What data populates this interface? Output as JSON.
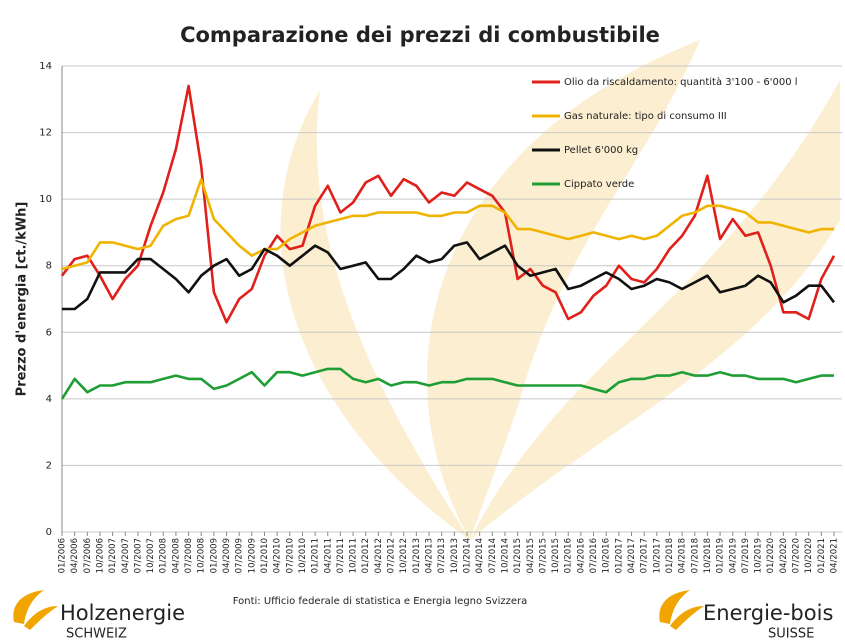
{
  "chart_data": {
    "type": "line",
    "title": "Comparazione dei prezzi di combustibile",
    "y_label": "Prezzo d'energia  [ct./kWh]",
    "categories": [
      "01/2006",
      "04/2006",
      "07/2006",
      "10/2006",
      "01/2007",
      "04/2007",
      "07/2007",
      "10/2007",
      "01/2008",
      "04/2008",
      "07/2008",
      "10/2008",
      "01/2009",
      "04/2009",
      "07/2009",
      "10/2009",
      "01/2010",
      "04/2010",
      "07/2010",
      "10/2010",
      "01/2011",
      "04/2011",
      "07/2011",
      "10/2011",
      "01/2012",
      "04/2012",
      "07/2012",
      "10/2012",
      "01/2013",
      "04/2013",
      "07/2013",
      "10/2013",
      "01/2014",
      "04/2014",
      "07/2014",
      "10/2014",
      "01/2015",
      "04/2015",
      "07/2015",
      "10/2015",
      "01/2016",
      "04/2016",
      "07/2016",
      "10/2016",
      "01/2017",
      "04/2017",
      "07/2017",
      "10/2017",
      "01/2018",
      "04/2018",
      "07/2018",
      "10/2018",
      "01/2019",
      "04/2019",
      "07/2019",
      "10/2019",
      "01/2020",
      "04/2020",
      "07/2020",
      "10/2020",
      "01/2021",
      "04/2021"
    ],
    "series": [
      {
        "name": "Olio da riscaldamento: quantità 3'100 - 6'000 l",
        "color": "#e0201b",
        "values": [
          7.7,
          8.2,
          8.3,
          7.7,
          7.0,
          7.6,
          8.0,
          9.2,
          10.2,
          11.5,
          13.4,
          11.0,
          7.2,
          6.3,
          7.0,
          7.3,
          8.3,
          8.9,
          8.5,
          8.6,
          9.8,
          10.4,
          9.6,
          9.9,
          10.5,
          10.7,
          10.1,
          10.6,
          10.4,
          9.9,
          10.2,
          10.1,
          10.5,
          10.3,
          10.1,
          9.6,
          7.6,
          7.9,
          7.4,
          7.2,
          6.4,
          6.6,
          7.1,
          7.4,
          8.0,
          7.6,
          7.5,
          7.9,
          8.5,
          8.9,
          9.5,
          10.7,
          8.8,
          9.4,
          8.9,
          9.0,
          8.0,
          6.6,
          6.6,
          6.4,
          7.6,
          8.3
        ]
      },
      {
        "name": "Gas naturale: tipo di consumo III",
        "color": "#f0b400",
        "values": [
          7.9,
          8.0,
          8.1,
          8.7,
          8.7,
          8.6,
          8.5,
          8.6,
          9.2,
          9.4,
          9.5,
          10.6,
          9.4,
          9.0,
          8.6,
          8.3,
          8.5,
          8.5,
          8.8,
          9.0,
          9.2,
          9.3,
          9.4,
          9.5,
          9.5,
          9.6,
          9.6,
          9.6,
          9.6,
          9.5,
          9.5,
          9.6,
          9.6,
          9.8,
          9.8,
          9.6,
          9.1,
          9.1,
          9.0,
          8.9,
          8.8,
          8.9,
          9.0,
          8.9,
          8.8,
          8.9,
          8.8,
          8.9,
          9.2,
          9.5,
          9.6,
          9.8,
          9.8,
          9.7,
          9.6,
          9.3,
          9.3,
          9.2,
          9.1,
          9.0,
          9.1,
          9.1
        ]
      },
      {
        "name": "Pellet 6'000 kg",
        "color": "#111111",
        "values": [
          6.7,
          6.7,
          7.0,
          7.8,
          7.8,
          7.8,
          8.2,
          8.2,
          7.9,
          7.6,
          7.2,
          7.7,
          8.0,
          8.2,
          7.7,
          7.9,
          8.5,
          8.3,
          8.0,
          8.3,
          8.6,
          8.4,
          7.9,
          8.0,
          8.1,
          7.6,
          7.6,
          7.9,
          8.3,
          8.1,
          8.2,
          8.6,
          8.7,
          8.2,
          8.4,
          8.6,
          8.0,
          7.7,
          7.8,
          7.9,
          7.3,
          7.4,
          7.6,
          7.8,
          7.6,
          7.3,
          7.4,
          7.6,
          7.5,
          7.3,
          7.5,
          7.7,
          7.2,
          7.3,
          7.4,
          7.7,
          7.5,
          6.9,
          7.1,
          7.4,
          7.4,
          6.9
        ]
      },
      {
        "name": "Cippato verde",
        "color": "#1f9e35",
        "values": [
          4.0,
          4.6,
          4.2,
          4.4,
          4.4,
          4.5,
          4.5,
          4.5,
          4.6,
          4.7,
          4.6,
          4.6,
          4.3,
          4.4,
          4.6,
          4.8,
          4.4,
          4.8,
          4.8,
          4.7,
          4.8,
          4.9,
          4.9,
          4.6,
          4.5,
          4.6,
          4.4,
          4.5,
          4.5,
          4.4,
          4.5,
          4.5,
          4.6,
          4.6,
          4.6,
          4.5,
          4.4,
          4.4,
          4.4,
          4.4,
          4.4,
          4.4,
          4.3,
          4.2,
          4.5,
          4.6,
          4.6,
          4.7,
          4.7,
          4.8,
          4.7,
          4.7,
          4.8,
          4.7,
          4.7,
          4.6,
          4.6,
          4.6,
          4.5,
          4.6,
          4.7,
          4.7
        ]
      }
    ],
    "ylim": [
      0,
      14
    ],
    "yticks": [
      0,
      2,
      4,
      6,
      8,
      10,
      12,
      14
    ],
    "grid": true,
    "legend": "top-right",
    "source": "Fonti: Ufficio federale di statistica e Energia legno Svizzera"
  },
  "footer": {
    "left_logo": "Holzenergie",
    "left_sub": "SCHWEIZ",
    "right_logo": "Energie-bois",
    "right_sub": "SUISSE"
  }
}
